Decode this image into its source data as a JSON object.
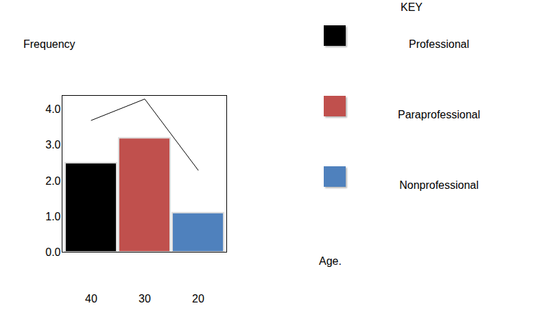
{
  "chart_data": {
    "type": "bar",
    "y_label": "Frequency",
    "x_label": "Age.",
    "legend_title": "KEY",
    "legend": "right",
    "categories": [
      "40",
      "30",
      "20"
    ],
    "series": [
      {
        "name": "Professional",
        "color": "#000000",
        "values": [
          2.5,
          null,
          null
        ]
      },
      {
        "name": "Paraprofessional",
        "color": "#c0504d",
        "values": [
          null,
          3.2,
          null
        ]
      },
      {
        "name": "Nonprofessional",
        "color": "#4f81bd",
        "values": [
          null,
          null,
          1.1
        ]
      },
      {
        "type": "line",
        "color": "#000000",
        "values": [
          3.7,
          4.3,
          2.3
        ]
      }
    ],
    "ylim": [
      0,
      4.4
    ],
    "yticks": [
      0,
      1,
      2,
      3,
      4
    ]
  }
}
